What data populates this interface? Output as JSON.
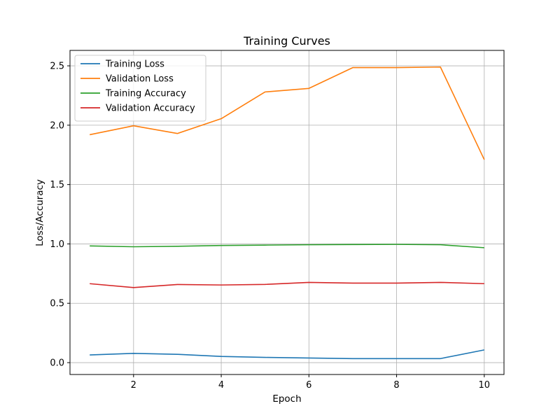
{
  "chart_data": {
    "type": "line",
    "title": "Training Curves",
    "xlabel": "Epoch",
    "ylabel": "Loss/Accuracy",
    "x": [
      1,
      2,
      3,
      4,
      5,
      6,
      7,
      8,
      9,
      10
    ],
    "xlim": [
      0.55,
      10.45
    ],
    "ylim": [
      -0.1,
      2.63
    ],
    "xticks": [
      2,
      4,
      6,
      8,
      10
    ],
    "yticks": [
      0.0,
      0.5,
      1.0,
      1.5,
      2.0,
      2.5
    ],
    "xtick_labels": [
      "2",
      "4",
      "6",
      "8",
      "10"
    ],
    "ytick_labels": [
      "0.0",
      "0.5",
      "1.0",
      "1.5",
      "2.0",
      "2.5"
    ],
    "grid": true,
    "legend_position": "top-left",
    "series": [
      {
        "name": "Training Loss",
        "color": "#1f77b4",
        "values": [
          0.065,
          0.078,
          0.07,
          0.052,
          0.044,
          0.039,
          0.034,
          0.034,
          0.034,
          0.107
        ]
      },
      {
        "name": "Validation Loss",
        "color": "#ff7f0e",
        "values": [
          1.92,
          1.995,
          1.93,
          2.055,
          2.28,
          2.31,
          2.485,
          2.485,
          2.49,
          1.71
        ]
      },
      {
        "name": "Training Accuracy",
        "color": "#2ca02c",
        "values": [
          0.983,
          0.976,
          0.98,
          0.987,
          0.99,
          0.993,
          0.995,
          0.996,
          0.993,
          0.968
        ]
      },
      {
        "name": "Validation Accuracy",
        "color": "#d62728",
        "values": [
          0.665,
          0.632,
          0.658,
          0.654,
          0.659,
          0.676,
          0.67,
          0.67,
          0.676,
          0.665
        ]
      }
    ]
  }
}
